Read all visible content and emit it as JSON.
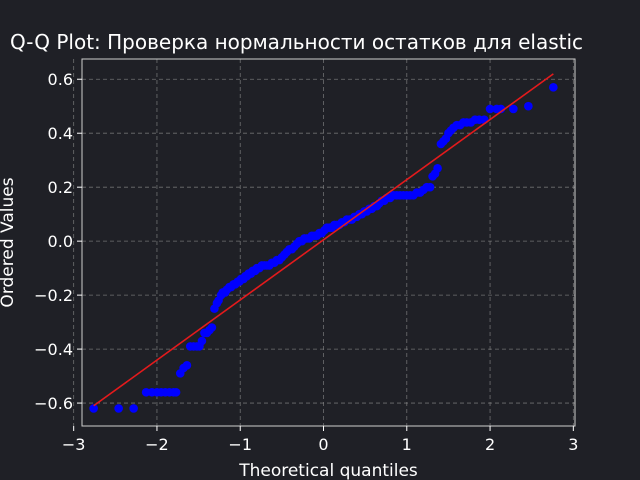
{
  "chart_data": {
    "type": "scatter",
    "title": "Q-Q Plot: Проверка нормальности остатков для elastic",
    "xlabel": "Theoretical quantiles",
    "ylabel": "Ordered Values",
    "xlim": [
      -2.9,
      3.02
    ],
    "ylim": [
      -0.685,
      0.675
    ],
    "xticks": [
      "−3",
      "−2",
      "−1",
      "0",
      "1",
      "2",
      "3"
    ],
    "yticks": [
      "−0.6",
      "−0.4",
      "−0.2",
      "0.0",
      "0.2",
      "0.4",
      "0.6"
    ],
    "grid": true,
    "points_color": "#0000ff",
    "line_color": "#e41a1c",
    "background": "#1f2026",
    "fit_line": {
      "x": [
        -2.76,
        2.76
      ],
      "y": [
        -0.61,
        0.62
      ]
    },
    "series": [
      {
        "values_x": [
          -2.76,
          -2.46,
          -2.28,
          -2.13,
          -2.06,
          -2.0,
          -1.95,
          -1.9,
          -1.85,
          -1.8,
          -1.77,
          -1.72,
          -1.68,
          -1.64,
          -1.6,
          -1.56,
          -1.52,
          -1.49,
          -1.46,
          -1.43,
          -1.4,
          -1.37,
          -1.34,
          -1.31,
          -1.28,
          -1.26,
          -1.23,
          -1.21,
          -1.18,
          -1.16,
          -1.13,
          -1.11,
          -1.08,
          -1.06,
          -1.03,
          -1.01,
          -0.99,
          -0.96,
          -0.94,
          -0.92,
          -0.9,
          -0.87,
          -0.85,
          -0.82,
          -0.8,
          -0.77,
          -0.74,
          -0.71,
          -0.68,
          -0.65,
          -0.62,
          -0.59,
          -0.56,
          -0.53,
          -0.5,
          -0.47,
          -0.44,
          -0.41,
          -0.38,
          -0.35,
          -0.32,
          -0.29,
          -0.26,
          -0.23,
          -0.2,
          -0.17,
          -0.14,
          -0.11,
          -0.08,
          -0.05,
          -0.02,
          0.01,
          0.04,
          0.07,
          0.1,
          0.13,
          0.16,
          0.19,
          0.22,
          0.25,
          0.28,
          0.31,
          0.34,
          0.37,
          0.4,
          0.43,
          0.46,
          0.49,
          0.52,
          0.55,
          0.58,
          0.61,
          0.64,
          0.67,
          0.7,
          0.73,
          0.76,
          0.8,
          0.84,
          0.88,
          0.92,
          0.96,
          1.0,
          1.04,
          1.08,
          1.12,
          1.16,
          1.2,
          1.24,
          1.28,
          1.31,
          1.34,
          1.37,
          1.41,
          1.44,
          1.47,
          1.5,
          1.53,
          1.56,
          1.6,
          1.64,
          1.68,
          1.72,
          1.77,
          1.82,
          1.87,
          1.93,
          2.0,
          2.08,
          2.13,
          2.28,
          2.46,
          2.76
        ],
        "values_y": [
          -0.62,
          -0.62,
          -0.62,
          -0.56,
          -0.56,
          -0.56,
          -0.56,
          -0.56,
          -0.56,
          -0.56,
          -0.56,
          -0.49,
          -0.47,
          -0.46,
          -0.39,
          -0.39,
          -0.39,
          -0.39,
          -0.37,
          -0.34,
          -0.34,
          -0.33,
          -0.32,
          -0.25,
          -0.23,
          -0.22,
          -0.2,
          -0.19,
          -0.19,
          -0.18,
          -0.17,
          -0.17,
          -0.16,
          -0.16,
          -0.15,
          -0.15,
          -0.14,
          -0.14,
          -0.13,
          -0.13,
          -0.12,
          -0.12,
          -0.11,
          -0.11,
          -0.1,
          -0.1,
          -0.09,
          -0.09,
          -0.09,
          -0.09,
          -0.08,
          -0.08,
          -0.07,
          -0.07,
          -0.06,
          -0.05,
          -0.04,
          -0.03,
          -0.03,
          -0.02,
          -0.01,
          0.0,
          0.0,
          0.01,
          0.01,
          0.01,
          0.02,
          0.02,
          0.02,
          0.03,
          0.03,
          0.04,
          0.05,
          0.05,
          0.05,
          0.06,
          0.06,
          0.06,
          0.07,
          0.07,
          0.08,
          0.08,
          0.08,
          0.09,
          0.09,
          0.1,
          0.1,
          0.11,
          0.11,
          0.12,
          0.12,
          0.13,
          0.13,
          0.14,
          0.15,
          0.15,
          0.16,
          0.16,
          0.17,
          0.17,
          0.17,
          0.17,
          0.17,
          0.17,
          0.17,
          0.18,
          0.18,
          0.19,
          0.2,
          0.2,
          0.24,
          0.25,
          0.27,
          0.36,
          0.37,
          0.38,
          0.4,
          0.41,
          0.42,
          0.43,
          0.43,
          0.44,
          0.44,
          0.44,
          0.45,
          0.45,
          0.45,
          0.49,
          0.49,
          0.49,
          0.49,
          0.5,
          0.57
        ]
      }
    ]
  }
}
